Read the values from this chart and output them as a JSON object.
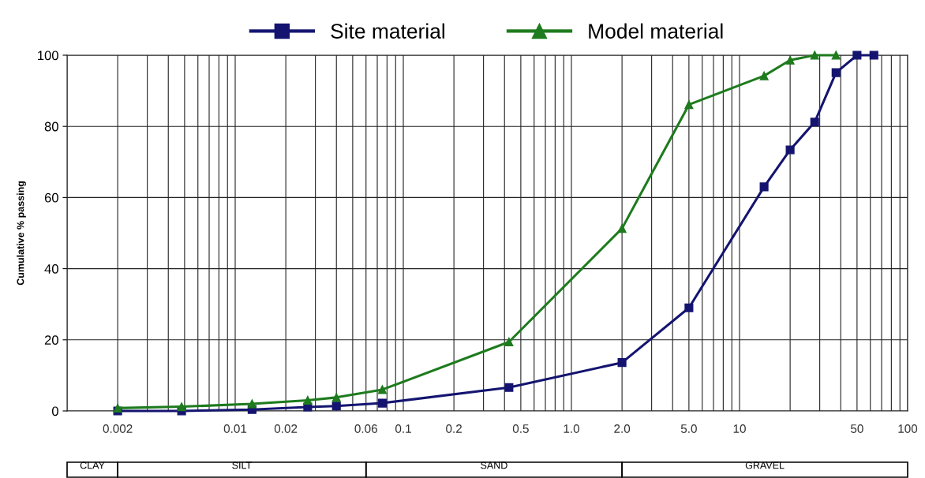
{
  "chart_data": {
    "type": "line",
    "ylabel": "Cumulative % passing",
    "log": "x",
    "xlim": [
      0.001,
      100
    ],
    "xticks": [
      0.002,
      0.01,
      0.02,
      0.06,
      0.1,
      0.2,
      0.5,
      {
        "value": 1,
        "label": "1.0"
      },
      {
        "value": 2,
        "label": "2.0"
      },
      {
        "value": 5,
        "label": "5.0"
      },
      10,
      50,
      100
    ],
    "ylim": [
      0,
      100
    ],
    "yticks": [
      0,
      20,
      40,
      60,
      80,
      100
    ],
    "grid": true,
    "legend": "top",
    "line_style": "solid",
    "series": [
      {
        "name": "Site material",
        "color": "#141470",
        "marker": "square",
        "x": [
          0.002,
          0.0048,
          0.0126,
          0.027,
          0.04,
          0.075,
          0.425,
          2,
          5,
          14,
          20,
          28,
          37.5,
          50,
          63
        ],
        "values": [
          0,
          0,
          0.4,
          1.1,
          1.4,
          2.2,
          6.6,
          13.6,
          29.0,
          63.0,
          73.4,
          81.2,
          95.1,
          100,
          100
        ]
      },
      {
        "name": "Model material",
        "color": "#1e7b1e",
        "marker": "triangle",
        "x": [
          0.002,
          0.0048,
          0.0126,
          0.027,
          0.04,
          0.075,
          0.425,
          2,
          5,
          14,
          20,
          28,
          37.5
        ],
        "values": [
          0.8,
          1.2,
          2.0,
          3.0,
          3.8,
          6.0,
          19.4,
          51.3,
          86.1,
          94.2,
          98.6,
          100,
          100
        ]
      }
    ],
    "annotations": [
      "CLAY",
      "SILT",
      "SAND",
      "GRAVEL"
    ]
  }
}
